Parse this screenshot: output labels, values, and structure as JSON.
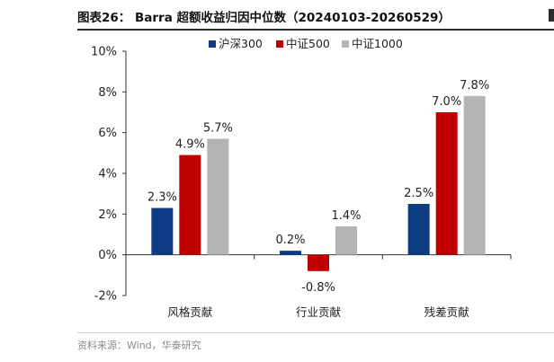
{
  "header": {
    "title": "图表26： Barra 超额收益归因中位数（20240103-20260529）"
  },
  "source": {
    "text": "资料来源：Wind，华泰研究"
  },
  "chart_data": {
    "type": "bar",
    "categories": [
      "风格贡献",
      "行业贡献",
      "残差贡献"
    ],
    "series": [
      {
        "name": "沪深300",
        "color": "#0d3c84",
        "values": [
          2.3,
          0.2,
          2.5
        ],
        "labels": [
          "2.3%",
          "0.2%",
          "2.5%"
        ]
      },
      {
        "name": "中证500",
        "color": "#c00000",
        "values": [
          4.9,
          -0.8,
          7.0
        ],
        "labels": [
          "4.9%",
          "-0.8%",
          "7.0%"
        ]
      },
      {
        "name": "中证1000",
        "color": "#b4b4b4",
        "values": [
          5.7,
          1.4,
          7.8
        ],
        "labels": [
          "5.7%",
          "1.4%",
          "7.8%"
        ]
      }
    ],
    "ylim": [
      -2,
      10
    ],
    "yticks": [
      -2,
      0,
      2,
      4,
      6,
      8,
      10
    ],
    "ytick_labels": [
      "-2%",
      "0%",
      "2%",
      "4%",
      "6%",
      "8%",
      "10%"
    ],
    "grid": false,
    "legend_position": "top-center"
  }
}
